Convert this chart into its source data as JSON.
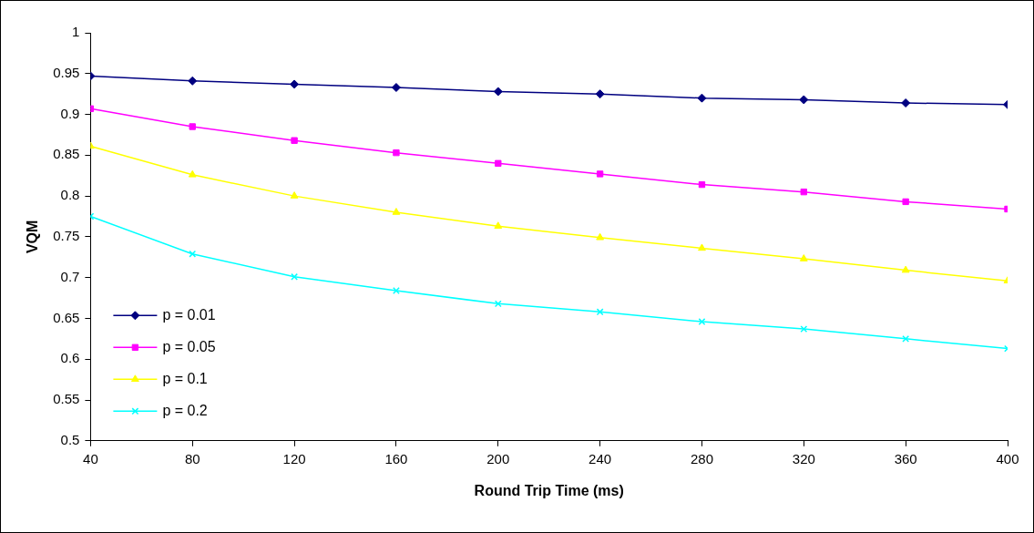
{
  "chart_data": {
    "type": "line",
    "xlabel": "Round Trip Time (ms)",
    "ylabel": "VQM",
    "x": [
      40,
      80,
      120,
      160,
      200,
      240,
      280,
      320,
      360,
      400
    ],
    "xlim": [
      40,
      400
    ],
    "xticks": [
      40,
      80,
      120,
      160,
      200,
      240,
      280,
      320,
      360,
      400
    ],
    "ylim": [
      0.5,
      1
    ],
    "yticks": [
      0.5,
      0.55,
      0.6,
      0.65,
      0.7,
      0.75,
      0.8,
      0.85,
      0.9,
      0.95,
      1
    ],
    "grid": false,
    "legend": "bottom left",
    "line_style": "solid",
    "series": [
      {
        "name": "p = 0.01",
        "color": "#000080",
        "marker": "diamond",
        "values": [
          0.947,
          0.941,
          0.937,
          0.933,
          0.928,
          0.925,
          0.92,
          0.918,
          0.914,
          0.912
        ]
      },
      {
        "name": "p = 0.05",
        "color": "#ff00ff",
        "marker": "square",
        "values": [
          0.907,
          0.885,
          0.868,
          0.853,
          0.84,
          0.827,
          0.814,
          0.805,
          0.793,
          0.784
        ]
      },
      {
        "name": "p = 0.1",
        "color": "#ffff00",
        "marker": "triangle",
        "values": [
          0.861,
          0.826,
          0.8,
          0.78,
          0.763,
          0.749,
          0.736,
          0.723,
          0.709,
          0.696
        ]
      },
      {
        "name": "p = 0.2",
        "color": "#00ffff",
        "marker": "cross",
        "values": [
          0.775,
          0.729,
          0.701,
          0.684,
          0.668,
          0.658,
          0.646,
          0.637,
          0.625,
          0.613
        ]
      }
    ]
  }
}
